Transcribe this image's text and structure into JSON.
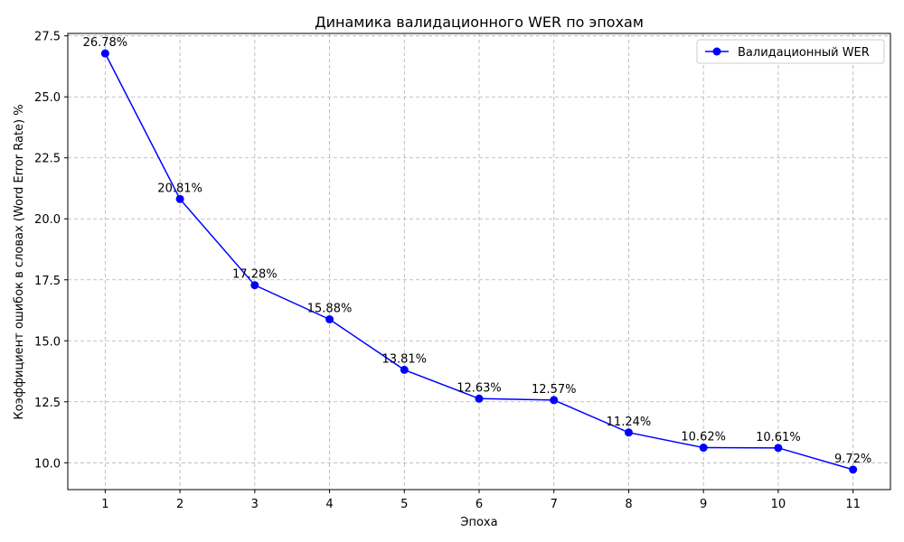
{
  "chart_data": {
    "type": "line",
    "title": "Динамика валидационного WER по эпохам",
    "xlabel": "Эпоха",
    "ylabel": "Коэффициент ошибок в словах (Word Error Rate) %",
    "x": [
      1,
      2,
      3,
      4,
      5,
      6,
      7,
      8,
      9,
      10,
      11
    ],
    "xlim": [
      0.5,
      11.5
    ],
    "ylim": [
      8.9,
      27.6
    ],
    "yticks": [
      10.0,
      12.5,
      15.0,
      17.5,
      20.0,
      22.5,
      25.0,
      27.5
    ],
    "ytick_labels": [
      "10.0",
      "12.5",
      "15.0",
      "17.5",
      "20.0",
      "22.5",
      "25.0",
      "27.5"
    ],
    "xtick_labels": [
      "1",
      "2",
      "3",
      "4",
      "5",
      "6",
      "7",
      "8",
      "9",
      "10",
      "11"
    ],
    "grid": true,
    "legend_position": "upper right",
    "series": [
      {
        "name": "Валидационный WER",
        "color": "#0000ff",
        "marker": "circle",
        "values": [
          26.78,
          20.81,
          17.28,
          15.88,
          13.81,
          12.63,
          12.57,
          11.24,
          10.62,
          10.61,
          9.72
        ],
        "labels": [
          "26.78%",
          "20.81%",
          "17.28%",
          "15.88%",
          "13.81%",
          "12.63%",
          "12.57%",
          "11.24%",
          "10.62%",
          "10.61%",
          "9.72%"
        ]
      }
    ]
  }
}
